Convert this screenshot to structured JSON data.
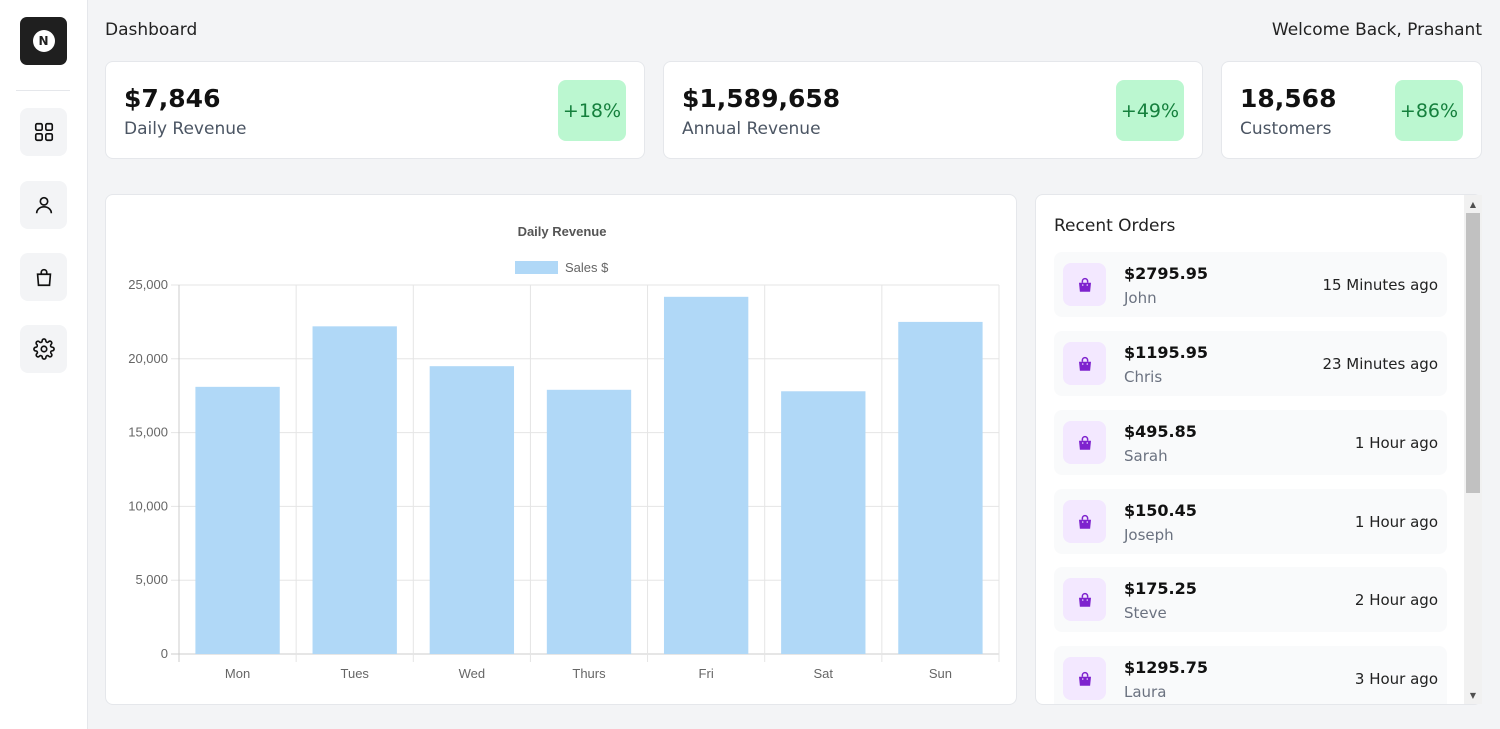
{
  "header": {
    "title": "Dashboard",
    "welcome": "Welcome Back, Prashant"
  },
  "sidebar": {
    "logo_letter": "N",
    "items": [
      {
        "name": "dashboard",
        "icon": "grid-icon"
      },
      {
        "name": "customers",
        "icon": "user-icon"
      },
      {
        "name": "orders",
        "icon": "shopping-bag-icon"
      },
      {
        "name": "settings",
        "icon": "gear-icon"
      }
    ]
  },
  "stats": [
    {
      "value": "$7,846",
      "label": "Daily Revenue",
      "change": "+18%"
    },
    {
      "value": "$1,589,658",
      "label": "Annual Revenue",
      "change": "+49%"
    },
    {
      "value": "18,568",
      "label": "Customers",
      "change": "+86%"
    }
  ],
  "colors": {
    "bar_fill": "#b0d8f7",
    "badge_bg": "#bbf7d0",
    "badge_text": "#15803d",
    "order_icon_bg": "#f3e8ff",
    "order_icon": "#7e22ce"
  },
  "chart_data": {
    "type": "bar",
    "title": "Daily Revenue",
    "categories": [
      "Mon",
      "Tues",
      "Wed",
      "Thurs",
      "Fri",
      "Sat",
      "Sun"
    ],
    "series": [
      {
        "name": "Sales $",
        "values": [
          18100,
          22200,
          19500,
          17900,
          24200,
          17800,
          22500
        ]
      }
    ],
    "ylim": [
      0,
      25000
    ],
    "yticks": [
      0,
      5000,
      10000,
      15000,
      20000,
      25000
    ],
    "ytick_labels": [
      "0",
      "5,000",
      "10,000",
      "15,000",
      "20,000",
      "25,000"
    ],
    "grid": true,
    "legend": "top"
  },
  "orders": {
    "title": "Recent Orders",
    "items": [
      {
        "amount": "$2795.95",
        "name": "John",
        "time": "15 Minutes ago"
      },
      {
        "amount": "$1195.95",
        "name": "Chris",
        "time": "23 Minutes ago"
      },
      {
        "amount": "$495.85",
        "name": "Sarah",
        "time": "1 Hour ago"
      },
      {
        "amount": "$150.45",
        "name": "Joseph",
        "time": "1 Hour ago"
      },
      {
        "amount": "$175.25",
        "name": "Steve",
        "time": "2 Hour ago"
      },
      {
        "amount": "$1295.75",
        "name": "Laura",
        "time": "3 Hour ago"
      }
    ]
  }
}
